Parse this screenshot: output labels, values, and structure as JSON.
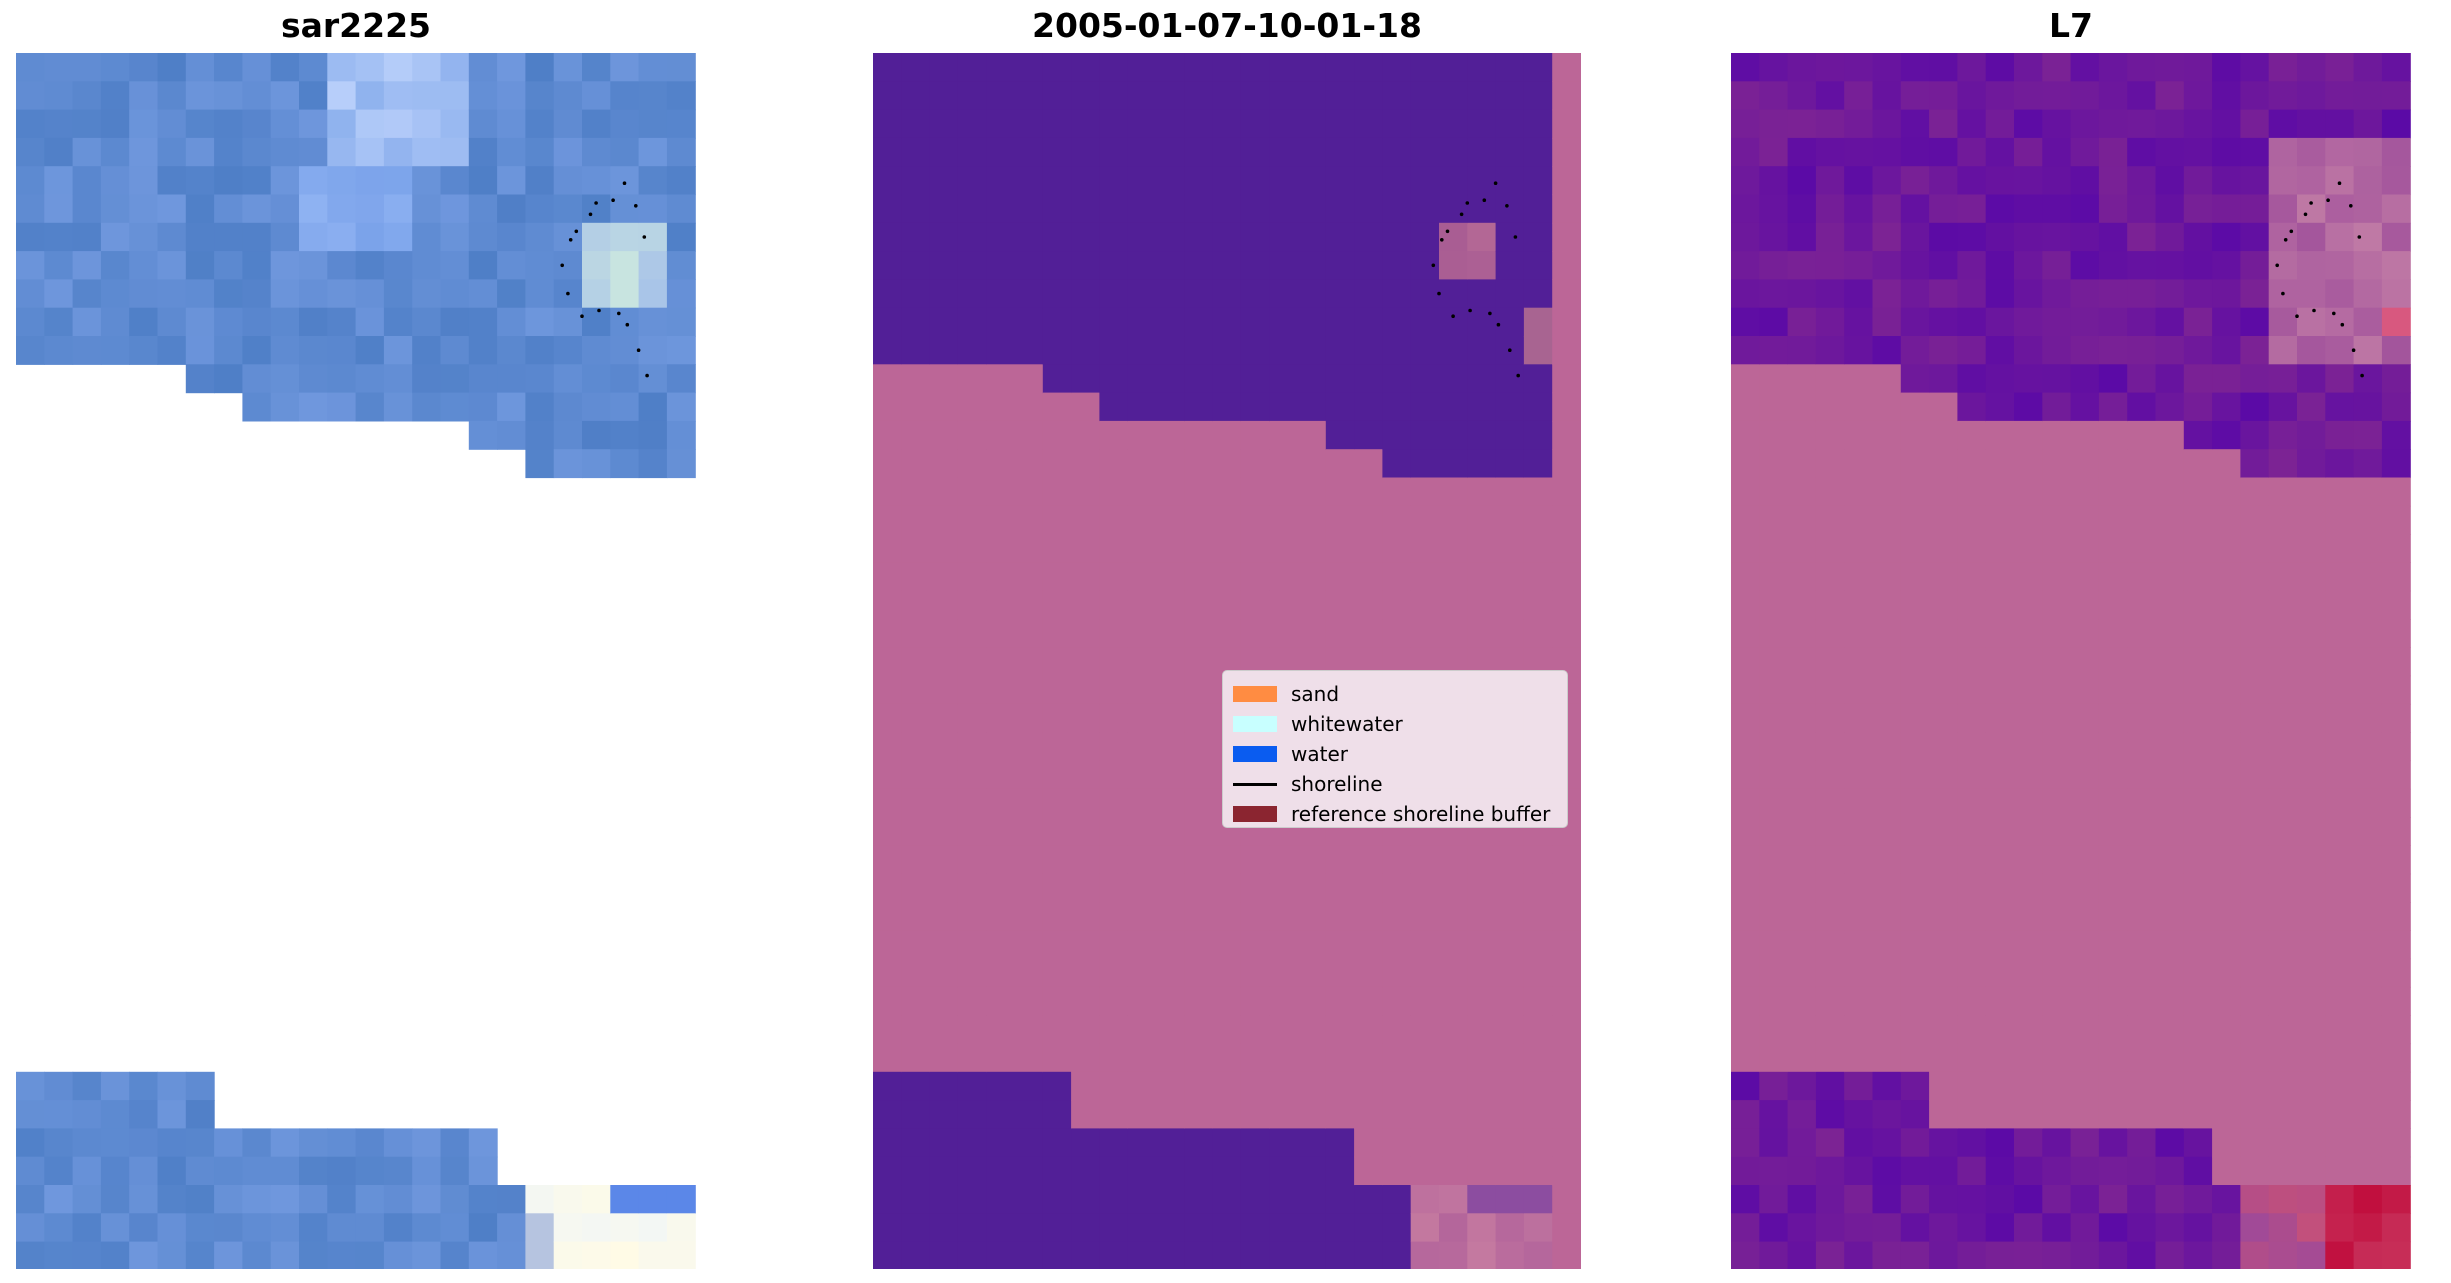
{
  "figure": {
    "panels": [
      {
        "id": "rgb",
        "title": "sar2225"
      },
      {
        "id": "classified",
        "title": "2005-01-07-10-01-18"
      },
      {
        "id": "mndwi",
        "title": "L7"
      }
    ]
  },
  "legend": {
    "position": "center-right of middle panel",
    "items": [
      {
        "label": "sand",
        "color": "#ff8c42",
        "kind": "patch"
      },
      {
        "label": "whitewater",
        "color": "#c8ffff",
        "kind": "patch"
      },
      {
        "label": "water",
        "color": "#0a5cf0",
        "kind": "patch"
      },
      {
        "label": "shoreline",
        "color": "#000000",
        "kind": "line"
      },
      {
        "label": "reference shoreline buffer",
        "color": "#8b2530",
        "kind": "patch"
      }
    ]
  },
  "chart_data": [
    {
      "type": "heatmap",
      "title": "sar2225",
      "description_kind": "rgb satellite tile",
      "grid": {
        "columns": 24,
        "rows": 43
      },
      "nodata_rows_range": [
        15,
        36
      ],
      "dominant_color": "#5b86cf",
      "axes": "off"
    },
    {
      "type": "heatmap",
      "title": "2005-01-07-10-01-18",
      "description_kind": "classified image",
      "grid": {
        "columns": 25,
        "rows": 43
      },
      "class_colors": {
        "water_overlay": "#521f97",
        "background": "#bc6697",
        "buffer_tint": "#a86491"
      },
      "axes": "off"
    },
    {
      "type": "heatmap",
      "title": "L7",
      "description_kind": "index image",
      "grid": {
        "columns": 24,
        "rows": 43
      },
      "colors": {
        "low": "#5b0aa6",
        "background": "#bc6697",
        "high": "#c0002e"
      },
      "axes": "off"
    }
  ]
}
